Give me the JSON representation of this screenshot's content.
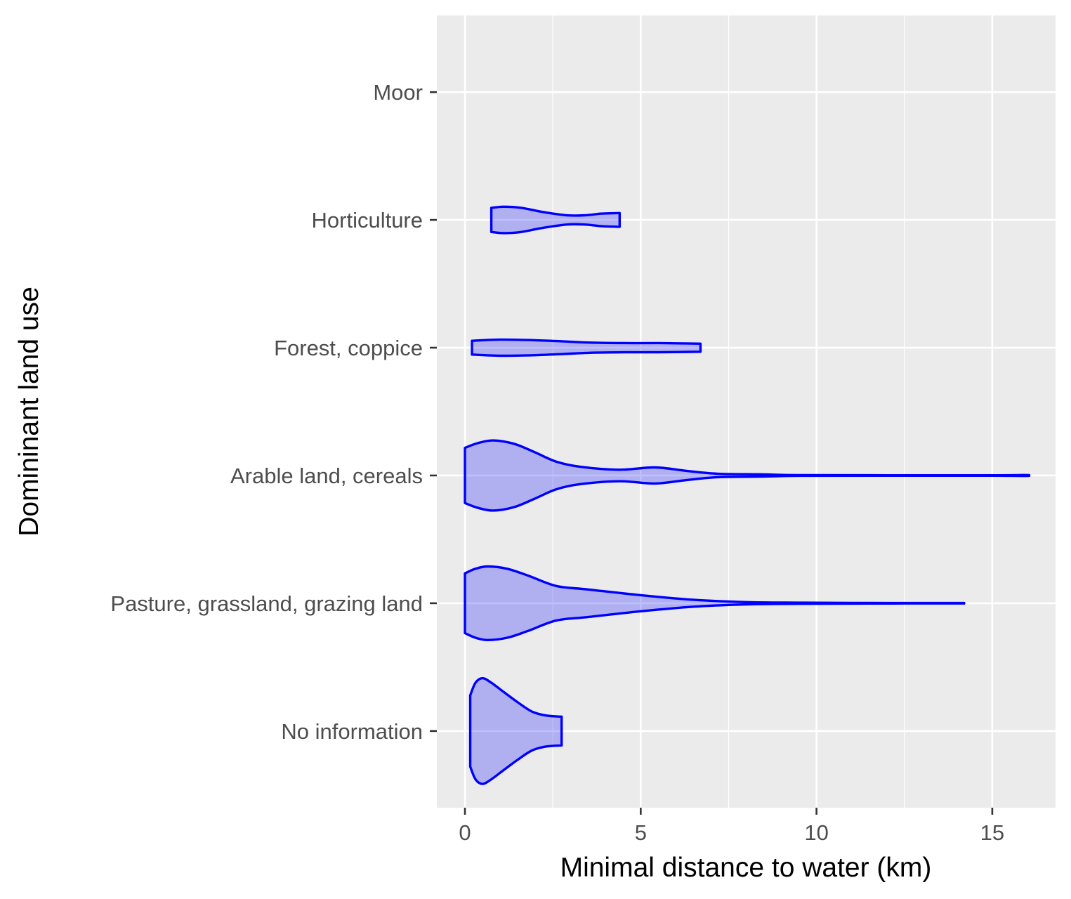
{
  "chart_data": {
    "type": "violin",
    "orientation": "horizontal",
    "xlabel": "Minimal distance to water (km)",
    "ylabel": "Domininant land use",
    "xlim": [
      -0.8,
      16.8
    ],
    "x_ticks": [
      0,
      5,
      10,
      15
    ],
    "x_minor_ticks": [
      2.5,
      7.5,
      12.5
    ],
    "grid": true,
    "color": "#0000ff",
    "fill_opacity": 0.25,
    "categories": [
      "No information",
      "Pasture, grassland, grazing land",
      "Arable land, cereals",
      "Forest, coppice",
      "Horticulture",
      "Moor"
    ],
    "violins": [
      {
        "category": "No information",
        "min": 0.15,
        "max": 2.75,
        "profile": [
          [
            0.15,
            0.62
          ],
          [
            0.3,
            0.84
          ],
          [
            0.5,
            0.92
          ],
          [
            0.75,
            0.84
          ],
          [
            1.1,
            0.68
          ],
          [
            1.5,
            0.5
          ],
          [
            1.9,
            0.34
          ],
          [
            2.3,
            0.27
          ],
          [
            2.75,
            0.25
          ]
        ]
      },
      {
        "category": "Pasture, grassland, grazing land",
        "min": 0.0,
        "max": 14.2,
        "profile": [
          [
            0.0,
            0.52
          ],
          [
            0.3,
            0.6
          ],
          [
            0.65,
            0.64
          ],
          [
            1.2,
            0.6
          ],
          [
            1.8,
            0.48
          ],
          [
            2.6,
            0.3
          ],
          [
            3.5,
            0.24
          ],
          [
            5.0,
            0.14
          ],
          [
            6.5,
            0.06
          ],
          [
            8.0,
            0.02
          ],
          [
            9.5,
            0.01
          ],
          [
            11.0,
            0.006
          ],
          [
            12.5,
            0.004
          ],
          [
            14.2,
            0.004
          ]
        ]
      },
      {
        "category": "Arable land, cereals",
        "min": 0.0,
        "max": 16.05,
        "profile": [
          [
            0.0,
            0.48
          ],
          [
            0.35,
            0.56
          ],
          [
            0.8,
            0.61
          ],
          [
            1.4,
            0.55
          ],
          [
            2.0,
            0.4
          ],
          [
            2.6,
            0.24
          ],
          [
            3.3,
            0.15
          ],
          [
            4.4,
            0.1
          ],
          [
            5.4,
            0.14
          ],
          [
            6.3,
            0.08
          ],
          [
            7.2,
            0.03
          ],
          [
            8.4,
            0.02
          ],
          [
            9.5,
            0.006
          ],
          [
            12.0,
            0.004
          ],
          [
            15.0,
            0.004
          ],
          [
            15.9,
            0.008
          ],
          [
            16.05,
            0.006
          ]
        ]
      },
      {
        "category": "Forest, coppice",
        "min": 0.2,
        "max": 6.7,
        "profile": [
          [
            0.2,
            0.12
          ],
          [
            1.0,
            0.14
          ],
          [
            2.0,
            0.13
          ],
          [
            2.8,
            0.11
          ],
          [
            3.5,
            0.09
          ],
          [
            4.5,
            0.08
          ],
          [
            5.5,
            0.08
          ],
          [
            6.2,
            0.075
          ],
          [
            6.7,
            0.07
          ]
        ]
      },
      {
        "category": "Horticulture",
        "min": 0.75,
        "max": 4.4,
        "profile": [
          [
            0.75,
            0.21
          ],
          [
            1.1,
            0.23
          ],
          [
            1.6,
            0.21
          ],
          [
            2.2,
            0.14
          ],
          [
            2.9,
            0.08
          ],
          [
            3.4,
            0.08
          ],
          [
            3.9,
            0.11
          ],
          [
            4.4,
            0.12
          ]
        ]
      }
    ]
  }
}
